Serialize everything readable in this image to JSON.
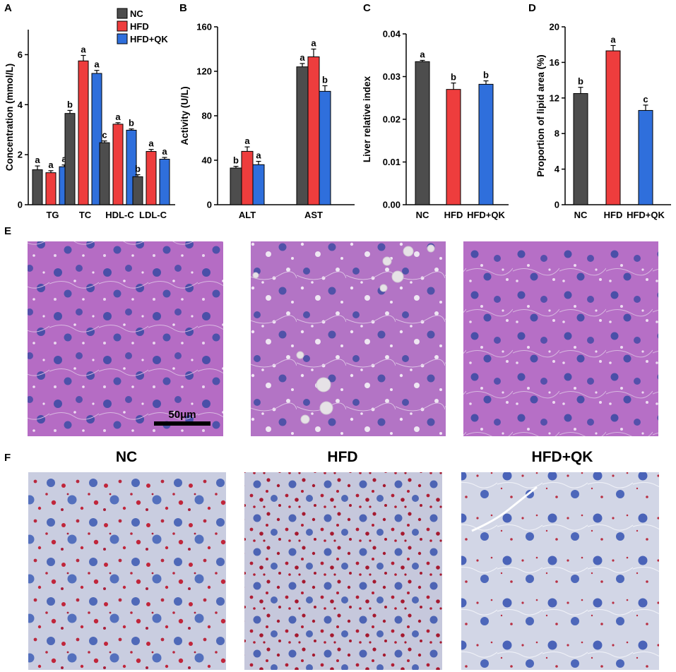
{
  "colors": {
    "NC": "#4d4d4d",
    "HFD": "#ee3d3d",
    "HFD+QK": "#2f6fdc",
    "axis": "#000000"
  },
  "panels": {
    "A": "A",
    "B": "B",
    "C": "C",
    "D": "D",
    "E": "E",
    "F": "F"
  },
  "legend": [
    "NC",
    "HFD",
    "HFD+QK"
  ],
  "scale_bar": {
    "label": "50μm"
  },
  "micro_titles": [
    "NC",
    "HFD",
    "HFD+QK"
  ],
  "images": {
    "E": [
      {
        "description": "H&E liver section, NC group",
        "stain": "he",
        "variant": "nc"
      },
      {
        "description": "H&E liver section, HFD group",
        "stain": "he",
        "variant": "hfd"
      },
      {
        "description": "H&E liver section, HFD+QK group",
        "stain": "he",
        "variant": "qk"
      }
    ],
    "F": [
      {
        "description": "Oil Red O liver section, NC group",
        "stain": "oro",
        "variant": "nc"
      },
      {
        "description": "Oil Red O liver section, HFD group",
        "stain": "oro",
        "variant": "hfd"
      },
      {
        "description": "Oil Red O liver section, HFD+QK group",
        "stain": "oro",
        "variant": "qk"
      }
    ]
  },
  "chart_data": [
    {
      "panel": "A",
      "type": "bar",
      "ylabel": "Concentration (mmol/L)",
      "ylim": [
        0,
        7
      ],
      "yticks": [
        0,
        2,
        4,
        6
      ],
      "categories": [
        "TG",
        "TC",
        "HDL-C",
        "LDL-C"
      ],
      "series": [
        {
          "name": "NC",
          "values": [
            1.4,
            3.65,
            2.48,
            1.12
          ],
          "errors": [
            0.15,
            0.12,
            0.07,
            0.08
          ],
          "letters": [
            "a",
            "b",
            "c",
            "b"
          ]
        },
        {
          "name": "HFD",
          "values": [
            1.28,
            5.75,
            3.22,
            2.13
          ],
          "errors": [
            0.08,
            0.22,
            0.06,
            0.08
          ],
          "letters": [
            "a",
            "a",
            "a",
            "a"
          ]
        },
        {
          "name": "HFD+QK",
          "values": [
            1.52,
            5.25,
            2.98,
            1.82
          ],
          "errors": [
            0.07,
            0.12,
            0.05,
            0.07
          ],
          "letters": [
            "a",
            "a",
            "b",
            "a"
          ]
        }
      ]
    },
    {
      "panel": "B",
      "type": "bar",
      "ylabel": "Activity (U/L)",
      "ylim": [
        0,
        160
      ],
      "yticks": [
        0,
        40,
        80,
        120,
        160
      ],
      "categories": [
        "ALT",
        "AST"
      ],
      "series": [
        {
          "name": "NC",
          "values": [
            33,
            124
          ],
          "errors": [
            1.5,
            3
          ],
          "letters": [
            "b",
            "a"
          ]
        },
        {
          "name": "HFD",
          "values": [
            48,
            133
          ],
          "errors": [
            4,
            7
          ],
          "letters": [
            "a",
            "a"
          ]
        },
        {
          "name": "HFD+QK",
          "values": [
            36,
            102
          ],
          "errors": [
            3,
            5
          ],
          "letters": [
            "a",
            "b"
          ]
        }
      ]
    },
    {
      "panel": "C",
      "type": "bar",
      "ylabel": "Liver relative index",
      "ylim": [
        0,
        0.04
      ],
      "yticks": [
        "0.00",
        "0.01",
        "0.02",
        "0.03",
        "0.04"
      ],
      "categories": [
        "NC",
        "HFD",
        "HFD+QK"
      ],
      "values": [
        0.0335,
        0.027,
        0.0282
      ],
      "errors": [
        0.0003,
        0.0015,
        0.0008
      ],
      "letters": [
        "a",
        "b",
        "b"
      ]
    },
    {
      "panel": "D",
      "type": "bar",
      "ylabel": "Proportion of lipid area (%)",
      "ylim": [
        0,
        20
      ],
      "yticks": [
        0,
        4,
        8,
        12,
        16,
        20
      ],
      "categories": [
        "NC",
        "HFD",
        "HFD+QK"
      ],
      "values": [
        12.5,
        17.3,
        10.6
      ],
      "errors": [
        0.7,
        0.6,
        0.6
      ],
      "letters": [
        "b",
        "a",
        "c"
      ]
    }
  ]
}
